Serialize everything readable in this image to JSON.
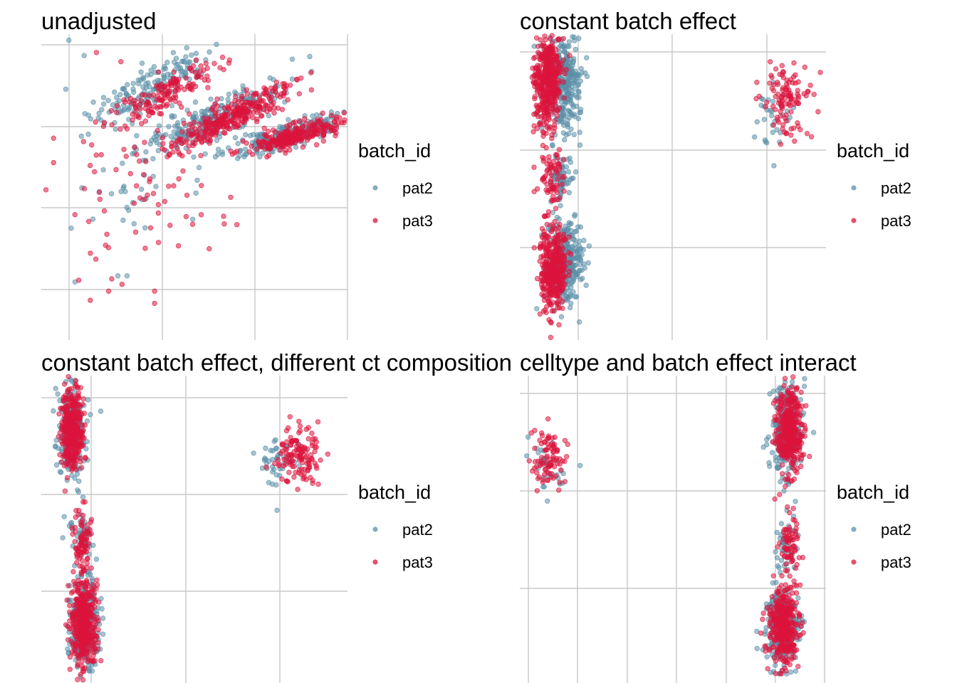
{
  "colors": {
    "pat2": "#5b8fa8",
    "pat3": "#dc143c",
    "grid": "#c8c8c8"
  },
  "legend": {
    "title": "batch_id",
    "items": [
      "pat2",
      "pat3"
    ]
  },
  "chart_data": [
    {
      "type": "scatter",
      "title": "unadjusted",
      "xlabel": "",
      "ylabel": "",
      "grid": true,
      "legend": "right",
      "series": [
        {
          "name": "pat2",
          "clusters": [
            {
              "cx": 0.36,
              "cy": 0.17,
              "sx": 0.1,
              "sy": 0.035,
              "n": 160,
              "tilt": -0.55
            },
            {
              "cx": 0.55,
              "cy": 0.28,
              "sx": 0.12,
              "sy": 0.03,
              "n": 220,
              "tilt": -0.45
            },
            {
              "cx": 0.8,
              "cy": 0.33,
              "sx": 0.1,
              "sy": 0.02,
              "n": 220,
              "tilt": -0.3
            },
            {
              "cx": 0.3,
              "cy": 0.52,
              "sx": 0.12,
              "sy": 0.1,
              "n": 25
            }
          ],
          "points": [
            [
              0.09,
              0.02
            ],
            [
              0.08,
              0.18
            ],
            [
              0.14,
              0.07
            ],
            [
              0.11,
              0.81
            ],
            [
              0.28,
              0.79
            ],
            [
              0.25,
              0.79
            ]
          ]
        },
        {
          "name": "pat3",
          "clusters": [
            {
              "cx": 0.4,
              "cy": 0.2,
              "sx": 0.09,
              "sy": 0.03,
              "n": 150,
              "tilt": -0.55
            },
            {
              "cx": 0.62,
              "cy": 0.27,
              "sx": 0.1,
              "sy": 0.025,
              "n": 320,
              "tilt": -0.45
            },
            {
              "cx": 0.83,
              "cy": 0.33,
              "sx": 0.08,
              "sy": 0.018,
              "n": 260,
              "tilt": -0.3
            },
            {
              "cx": 0.33,
              "cy": 0.53,
              "sx": 0.14,
              "sy": 0.11,
              "n": 60
            }
          ],
          "points": [
            [
              0.04,
              0.34
            ],
            [
              0.04,
              0.42
            ],
            [
              0.18,
              0.06
            ],
            [
              0.26,
              0.09
            ],
            [
              0.23,
              0.8
            ],
            [
              0.22,
              0.84
            ],
            [
              0.37,
              0.84
            ],
            [
              0.37,
              0.88
            ],
            [
              0.21,
              0.69
            ],
            [
              0.16,
              0.87
            ],
            [
              0.11,
              0.59
            ]
          ]
        }
      ]
    },
    {
      "type": "scatter",
      "title": "constant batch effect",
      "xlabel": "",
      "ylabel": "",
      "grid": true,
      "legend": "right",
      "series": [
        {
          "name": "pat2",
          "clusters": [
            {
              "cx": 0.14,
              "cy": 0.16,
              "sx": 0.028,
              "sy": 0.08,
              "n": 320
            },
            {
              "cx": 0.14,
              "cy": 0.46,
              "sx": 0.02,
              "sy": 0.045,
              "n": 60
            },
            {
              "cx": 0.15,
              "cy": 0.75,
              "sx": 0.028,
              "sy": 0.07,
              "n": 280
            },
            {
              "cx": 0.82,
              "cy": 0.27,
              "sx": 0.03,
              "sy": 0.05,
              "n": 30
            }
          ],
          "points": [
            [
              0.83,
              0.43
            ],
            [
              0.18,
              0.59
            ],
            [
              0.19,
              0.63
            ]
          ]
        },
        {
          "name": "pat3",
          "clusters": [
            {
              "cx": 0.09,
              "cy": 0.15,
              "sx": 0.022,
              "sy": 0.08,
              "n": 420
            },
            {
              "cx": 0.1,
              "cy": 0.47,
              "sx": 0.018,
              "sy": 0.05,
              "n": 70
            },
            {
              "cx": 0.11,
              "cy": 0.76,
              "sx": 0.022,
              "sy": 0.07,
              "n": 380
            },
            {
              "cx": 0.87,
              "cy": 0.22,
              "sx": 0.035,
              "sy": 0.055,
              "n": 110
            }
          ],
          "points": []
        }
      ]
    },
    {
      "type": "scatter",
      "title": "constant batch effect, different ct composition",
      "xlabel": "",
      "ylabel": "",
      "grid": true,
      "legend": "right",
      "series": [
        {
          "name": "pat2",
          "clusters": [
            {
              "cx": 0.1,
              "cy": 0.18,
              "sx": 0.022,
              "sy": 0.07,
              "n": 260
            },
            {
              "cx": 0.13,
              "cy": 0.52,
              "sx": 0.02,
              "sy": 0.05,
              "n": 50
            },
            {
              "cx": 0.14,
              "cy": 0.81,
              "sx": 0.024,
              "sy": 0.07,
              "n": 260
            },
            {
              "cx": 0.77,
              "cy": 0.28,
              "sx": 0.03,
              "sy": 0.04,
              "n": 40
            }
          ],
          "points": [
            [
              0.08,
              0.02
            ],
            [
              0.77,
              0.44
            ],
            [
              0.07,
              0.53
            ],
            [
              0.18,
              0.6
            ]
          ]
        },
        {
          "name": "pat3",
          "clusters": [
            {
              "cx": 0.1,
              "cy": 0.18,
              "sx": 0.018,
              "sy": 0.065,
              "n": 380
            },
            {
              "cx": 0.13,
              "cy": 0.53,
              "sx": 0.016,
              "sy": 0.05,
              "n": 80
            },
            {
              "cx": 0.14,
              "cy": 0.81,
              "sx": 0.022,
              "sy": 0.07,
              "n": 420
            },
            {
              "cx": 0.84,
              "cy": 0.26,
              "sx": 0.035,
              "sy": 0.045,
              "n": 130
            }
          ],
          "points": []
        }
      ]
    },
    {
      "type": "scatter",
      "title": "celltype and batch effect interact",
      "xlabel": "",
      "ylabel": "",
      "grid": true,
      "legend": "right",
      "series": [
        {
          "name": "pat2",
          "clusters": [
            {
              "cx": 0.09,
              "cy": 0.28,
              "sx": 0.03,
              "sy": 0.04,
              "n": 30
            },
            {
              "cx": 0.87,
              "cy": 0.18,
              "sx": 0.025,
              "sy": 0.07,
              "n": 260
            },
            {
              "cx": 0.87,
              "cy": 0.55,
              "sx": 0.018,
              "sy": 0.05,
              "n": 40
            },
            {
              "cx": 0.86,
              "cy": 0.82,
              "sx": 0.028,
              "sy": 0.06,
              "n": 260
            }
          ],
          "points": [
            [
              0.89,
              0.02
            ],
            [
              0.93,
              0.01
            ],
            [
              0.09,
              0.41
            ],
            [
              0.82,
              0.97
            ]
          ]
        },
        {
          "name": "pat3",
          "clusters": [
            {
              "cx": 0.09,
              "cy": 0.27,
              "sx": 0.03,
              "sy": 0.045,
              "n": 90
            },
            {
              "cx": 0.88,
              "cy": 0.18,
              "sx": 0.02,
              "sy": 0.07,
              "n": 380
            },
            {
              "cx": 0.88,
              "cy": 0.55,
              "sx": 0.016,
              "sy": 0.05,
              "n": 70
            },
            {
              "cx": 0.86,
              "cy": 0.82,
              "sx": 0.024,
              "sy": 0.06,
              "n": 380
            }
          ],
          "points": []
        }
      ]
    }
  ]
}
